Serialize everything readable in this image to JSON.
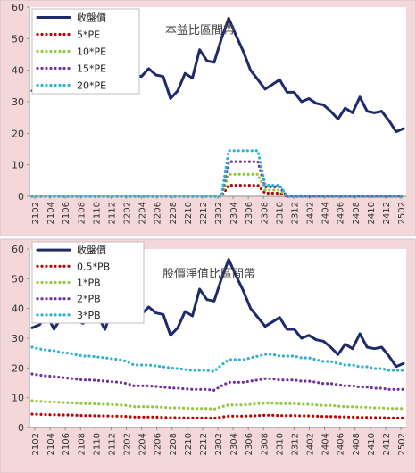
{
  "chart_data": [
    {
      "type": "line",
      "title": "本益比區間帶",
      "ylim": [
        0,
        60
      ],
      "yticks": [
        0,
        10,
        20,
        30,
        40,
        50,
        60
      ],
      "x_tick_labels": [
        "2102",
        "2104",
        "2106",
        "2108",
        "2110",
        "2112",
        "2202",
        "2204",
        "2206",
        "2208",
        "2210",
        "2212",
        "2302",
        "2304",
        "2306",
        "2308",
        "2310",
        "2312",
        "2402",
        "2404",
        "2406",
        "2408",
        "2410",
        "2412",
        "2502"
      ],
      "legend_position": "top-left",
      "grid": false,
      "series": [
        {
          "name": "收盤價",
          "color": "#1f2a6b",
          "style": "solid",
          "values": [
            33.5,
            34.5,
            38,
            33,
            37,
            39,
            36,
            35,
            38,
            37.5,
            33,
            40,
            38.5,
            40.5,
            38.5,
            38,
            40.5,
            38.5,
            38,
            31,
            33.5,
            39,
            37.5,
            46.5,
            43,
            42.5,
            50,
            56.5,
            51,
            46,
            40,
            37,
            34,
            35.5,
            37,
            33,
            33,
            30,
            31,
            29.5,
            29,
            27,
            24.5,
            28,
            26.5,
            31.5,
            27,
            26.5,
            27,
            24,
            20.5,
            21.5
          ]
        },
        {
          "name": "5*PE",
          "color": "#c00000",
          "style": "dotted",
          "values": [
            0,
            0,
            0,
            0,
            0,
            0,
            0,
            0,
            0,
            0,
            0,
            0,
            0,
            0,
            0,
            0,
            0,
            0,
            0,
            0,
            0,
            0,
            0,
            0,
            0,
            0,
            0,
            3.5,
            3.5,
            3.5,
            3.5,
            3.5,
            1,
            1,
            1,
            0,
            0,
            0,
            0,
            0,
            0,
            0,
            0,
            0,
            0,
            0,
            0,
            0,
            0,
            0,
            0,
            0
          ]
        },
        {
          "name": "10*PE",
          "color": "#92c83e",
          "style": "dotted",
          "values": [
            0,
            0,
            0,
            0,
            0,
            0,
            0,
            0,
            0,
            0,
            0,
            0,
            0,
            0,
            0,
            0,
            0,
            0,
            0,
            0,
            0,
            0,
            0,
            0,
            0,
            0,
            0,
            7,
            7,
            7,
            7,
            7,
            2,
            2,
            2,
            0,
            0,
            0,
            0,
            0,
            0,
            0,
            0,
            0,
            0,
            0,
            0,
            0,
            0,
            0,
            0,
            0
          ]
        },
        {
          "name": "15*PE",
          "color": "#7030a0",
          "style": "dotted",
          "values": [
            0,
            0,
            0,
            0,
            0,
            0,
            0,
            0,
            0,
            0,
            0,
            0,
            0,
            0,
            0,
            0,
            0,
            0,
            0,
            0,
            0,
            0,
            0,
            0,
            0,
            0,
            0,
            11,
            11,
            11,
            11,
            11,
            3,
            3,
            3,
            0,
            0,
            0,
            0,
            0,
            0,
            0,
            0,
            0,
            0,
            0,
            0,
            0,
            0,
            0,
            0,
            0
          ]
        },
        {
          "name": "20*PE",
          "color": "#2eb0d3",
          "style": "dotted",
          "values": [
            0,
            0,
            0,
            0,
            0,
            0,
            0,
            0,
            0,
            0,
            0,
            0,
            0,
            0,
            0,
            0,
            0,
            0,
            0,
            0,
            0,
            0,
            0,
            0,
            0,
            0,
            0,
            14.5,
            14.5,
            14.5,
            14.5,
            14.5,
            3.5,
            3.5,
            3.5,
            0,
            0,
            0,
            0,
            0,
            0,
            0,
            0,
            0,
            0,
            0,
            0,
            0,
            0,
            0,
            0,
            0
          ]
        }
      ]
    },
    {
      "type": "line",
      "title": "股價淨值比區間帶",
      "ylim": [
        0,
        60
      ],
      "yticks": [
        0,
        10,
        20,
        30,
        40,
        50,
        60
      ],
      "x_tick_labels": [
        "2102",
        "2104",
        "2106",
        "2108",
        "2110",
        "2112",
        "2202",
        "2204",
        "2206",
        "2208",
        "2210",
        "2212",
        "2302",
        "2304",
        "2306",
        "2308",
        "2310",
        "2312",
        "2402",
        "2404",
        "2406",
        "2408",
        "2410",
        "2412",
        "2502"
      ],
      "legend_position": "top-left",
      "grid": false,
      "series": [
        {
          "name": "收盤價",
          "color": "#1f2a6b",
          "style": "solid",
          "values": [
            33.5,
            34.5,
            38,
            33,
            37,
            39,
            36,
            35,
            38,
            37.5,
            33,
            40,
            38.5,
            40.5,
            38.5,
            38,
            40.5,
            38.5,
            38,
            31,
            33.5,
            39,
            37.5,
            46.5,
            43,
            42.5,
            50,
            56.5,
            51,
            46,
            40,
            37,
            34,
            35.5,
            37,
            33,
            33,
            30,
            31,
            29.5,
            29,
            27,
            24.5,
            28,
            26.5,
            31.5,
            27,
            26.5,
            27,
            24,
            20.5,
            21.5
          ]
        },
        {
          "name": "0.5*PB",
          "color": "#c00000",
          "style": "dotted",
          "values": [
            4.5,
            4.4,
            4.3,
            4.3,
            4.2,
            4.2,
            4.1,
            4.0,
            4.0,
            3.9,
            3.9,
            3.8,
            3.8,
            3.7,
            3.5,
            3.5,
            3.5,
            3.5,
            3.4,
            3.3,
            3.3,
            3.2,
            3.2,
            3.2,
            3.2,
            3.1,
            3.5,
            3.8,
            3.8,
            3.8,
            3.9,
            4.0,
            4.1,
            4.1,
            4.0,
            4.0,
            4.0,
            3.9,
            3.9,
            3.8,
            3.7,
            3.7,
            3.6,
            3.5,
            3.5,
            3.4,
            3.4,
            3.3,
            3.3,
            3.2,
            3.2,
            3.2
          ]
        },
        {
          "name": "1*PB",
          "color": "#92c83e",
          "style": "dotted",
          "values": [
            9.0,
            8.8,
            8.6,
            8.6,
            8.4,
            8.3,
            8.2,
            8.0,
            8.0,
            7.9,
            7.8,
            7.7,
            7.6,
            7.4,
            7.0,
            7.0,
            7.0,
            6.9,
            6.8,
            6.6,
            6.6,
            6.5,
            6.4,
            6.4,
            6.4,
            6.2,
            7.0,
            7.6,
            7.6,
            7.6,
            7.8,
            8.0,
            8.2,
            8.2,
            8.0,
            8.0,
            8.0,
            7.8,
            7.8,
            7.6,
            7.4,
            7.4,
            7.2,
            7.0,
            7.0,
            6.8,
            6.8,
            6.6,
            6.6,
            6.4,
            6.4,
            6.4
          ]
        },
        {
          "name": "2*PB",
          "color": "#7030a0",
          "style": "dotted",
          "values": [
            18.0,
            17.6,
            17.3,
            17.2,
            16.8,
            16.6,
            16.3,
            16.0,
            16.0,
            15.8,
            15.6,
            15.4,
            15.2,
            14.8,
            14.0,
            14.0,
            14.0,
            13.8,
            13.6,
            13.3,
            13.2,
            13.0,
            12.8,
            12.8,
            12.8,
            12.5,
            14.0,
            15.2,
            15.2,
            15.2,
            15.6,
            16.0,
            16.4,
            16.4,
            16.0,
            16.0,
            16.0,
            15.6,
            15.6,
            15.2,
            14.8,
            14.8,
            14.4,
            14.0,
            14.0,
            13.6,
            13.6,
            13.2,
            13.2,
            12.8,
            12.8,
            12.8
          ]
        },
        {
          "name": "3*PB",
          "color": "#2eb0d3",
          "style": "dotted",
          "values": [
            27.0,
            26.4,
            26.0,
            25.8,
            25.2,
            25.0,
            24.5,
            24.0,
            24.0,
            23.7,
            23.4,
            23.1,
            22.8,
            22.2,
            21.0,
            21.0,
            21.0,
            20.7,
            20.4,
            20.0,
            19.8,
            19.5,
            19.2,
            19.2,
            19.2,
            18.8,
            21.0,
            22.8,
            22.8,
            22.8,
            23.4,
            24.0,
            24.6,
            24.6,
            24.0,
            24.0,
            24.0,
            23.4,
            23.4,
            22.8,
            22.2,
            22.2,
            21.6,
            21.0,
            21.0,
            20.4,
            20.4,
            19.8,
            19.8,
            19.2,
            19.2,
            19.2
          ]
        }
      ]
    }
  ]
}
